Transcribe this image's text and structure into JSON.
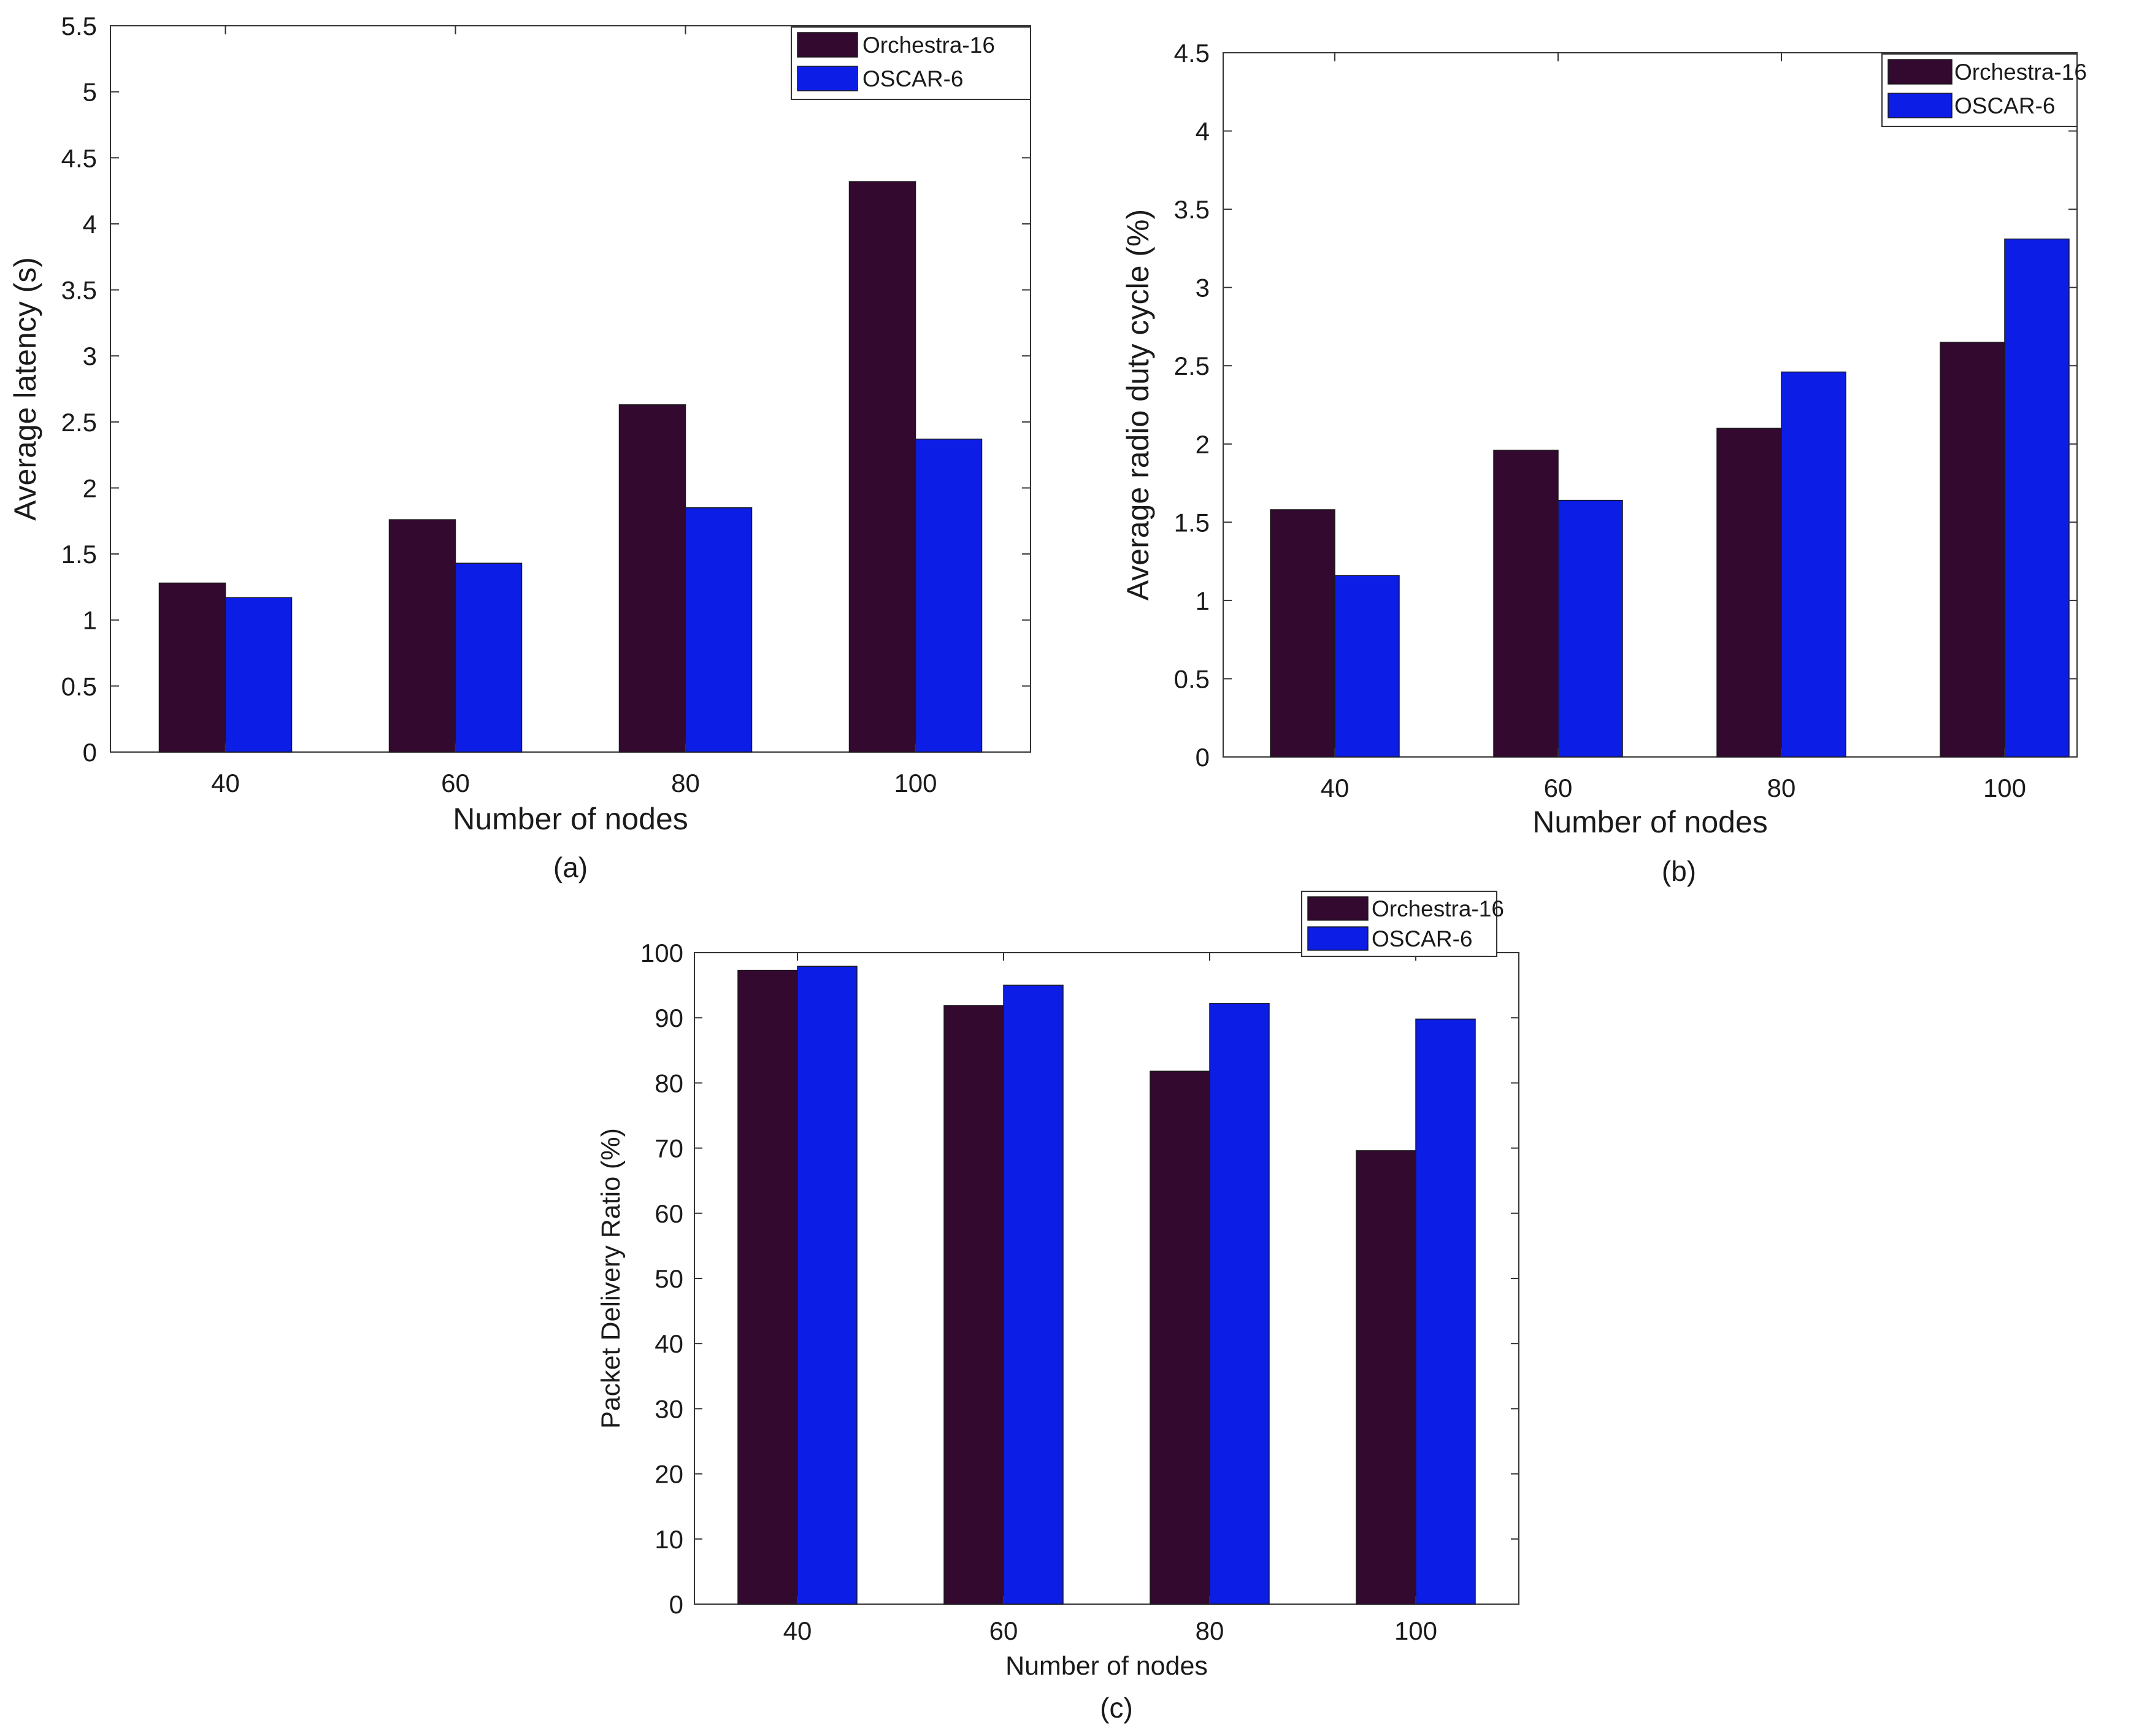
{
  "chart_data": [
    {
      "type": "bar",
      "caption": "(a)",
      "categories": [
        "40",
        "60",
        "80",
        "100"
      ],
      "series": [
        {
          "name": "Orchestra-16",
          "color": "#330930",
          "values": [
            1.28,
            1.76,
            2.63,
            4.32
          ]
        },
        {
          "name": "OSCAR-6",
          "color": "#0c1de6",
          "values": [
            1.17,
            1.43,
            1.85,
            2.37
          ]
        }
      ],
      "xlabel": "Number of nodes",
      "ylabel": "Average latency (s)",
      "ylim": [
        0,
        5.5
      ],
      "yticks": [
        "0",
        "0.5",
        "1",
        "1.5",
        "2",
        "2.5",
        "3",
        "3.5",
        "4",
        "4.5",
        "5",
        "5.5"
      ],
      "legend_position": "top-right"
    },
    {
      "type": "bar",
      "caption": "(b)",
      "categories": [
        "40",
        "60",
        "80",
        "100"
      ],
      "series": [
        {
          "name": "Orchestra-16",
          "color": "#330930",
          "values": [
            1.58,
            1.96,
            2.1,
            2.65
          ]
        },
        {
          "name": "OSCAR-6",
          "color": "#0c1de6",
          "values": [
            1.16,
            1.64,
            2.46,
            3.31
          ]
        }
      ],
      "xlabel": "Number of nodes",
      "ylabel": "Average radio duty cycle (%)",
      "ylim": [
        0,
        4.5
      ],
      "yticks": [
        "0",
        "0.5",
        "1",
        "1.5",
        "2",
        "2.5",
        "3",
        "3.5",
        "4",
        "4.5"
      ],
      "legend_position": "top-right"
    },
    {
      "type": "bar",
      "caption": "(c)",
      "categories": [
        "40",
        "60",
        "80",
        "100"
      ],
      "series": [
        {
          "name": "Orchestra-16",
          "color": "#330930",
          "values": [
            97.3,
            91.9,
            81.8,
            69.6
          ]
        },
        {
          "name": "OSCAR-6",
          "color": "#0c1de6",
          "values": [
            97.9,
            95.0,
            92.2,
            89.8
          ]
        }
      ],
      "xlabel": "Number of nodes",
      "ylabel": "Packet Delivery Ratio (%)",
      "ylim": [
        0,
        100
      ],
      "yticks": [
        "0",
        "10",
        "20",
        "30",
        "40",
        "50",
        "60",
        "70",
        "80",
        "90",
        "100"
      ],
      "legend_position": "top-right, above axes"
    }
  ]
}
